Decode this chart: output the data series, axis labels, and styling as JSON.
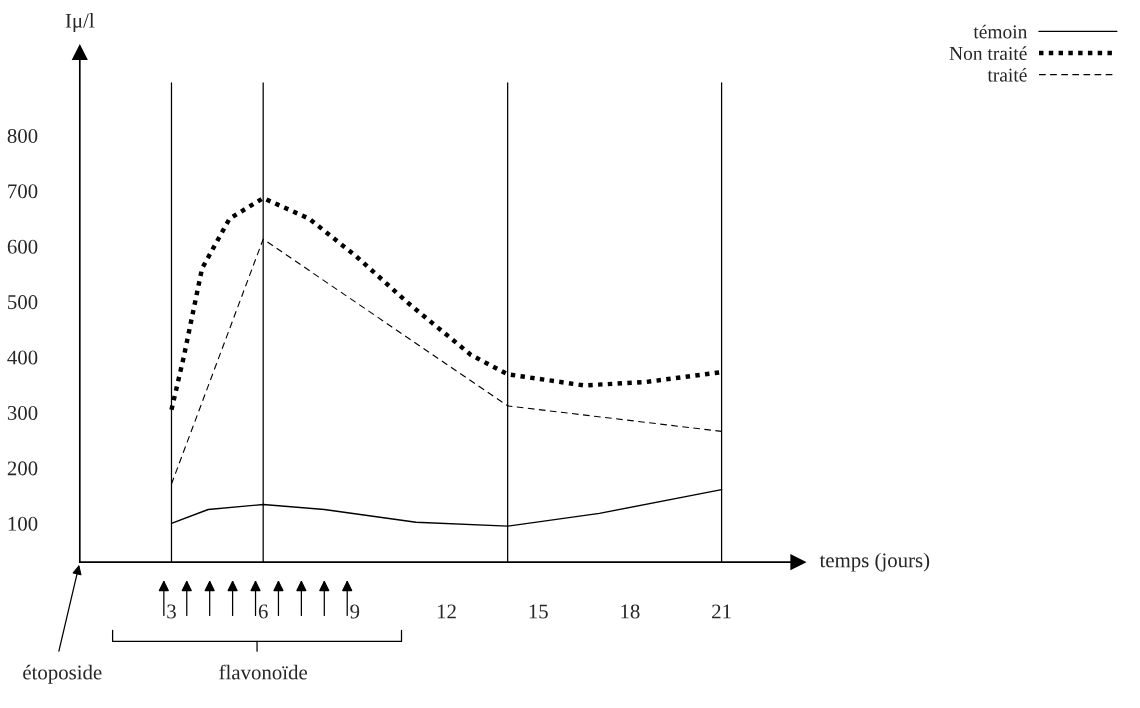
{
  "chart_data": {
    "type": "line",
    "xlabel": "temps (jours)",
    "ylabel": "Iμ/l",
    "xlim": [
      0,
      23.5
    ],
    "xticks": [
      3,
      6,
      9,
      12,
      15,
      18,
      21
    ],
    "ylim": [
      30,
      950
    ],
    "yticks": [
      100,
      200,
      300,
      400,
      500,
      600,
      700,
      800
    ],
    "series": [
      {
        "name": "témoin",
        "color": "#000000",
        "line_style": "solid",
        "x": [
          3,
          4.2,
          6,
          8,
          11,
          14,
          17,
          21
        ],
        "values": [
          100,
          125,
          134,
          125,
          102,
          95,
          118,
          161
        ]
      },
      {
        "name": "Non traité",
        "color": "#000000",
        "line_style": "dotted",
        "x": [
          3,
          3.4,
          4,
          4.9,
          6,
          7.5,
          9,
          10.8,
          12.8,
          14,
          16.5,
          18.5,
          21
        ],
        "values": [
          305,
          400,
          560,
          650,
          687,
          650,
          584,
          495,
          404,
          369,
          349,
          355,
          373
        ]
      },
      {
        "name": "traité",
        "color": "#000000",
        "line_style": "dashed",
        "x": [
          3,
          6,
          14,
          21
        ],
        "values": [
          171,
          613,
          312,
          266
        ]
      }
    ],
    "ref_lines": [
      {
        "axis": "x",
        "value": 3,
        "color": "#000000"
      },
      {
        "axis": "x",
        "value": 6,
        "color": "#000000"
      },
      {
        "axis": "x",
        "value": 14,
        "color": "#000000"
      },
      {
        "axis": "x",
        "value": 21,
        "color": "#000000"
      }
    ],
    "annotations": [
      "étoposide",
      "flavonoïde"
    ],
    "legend": "top right",
    "grid": false
  }
}
